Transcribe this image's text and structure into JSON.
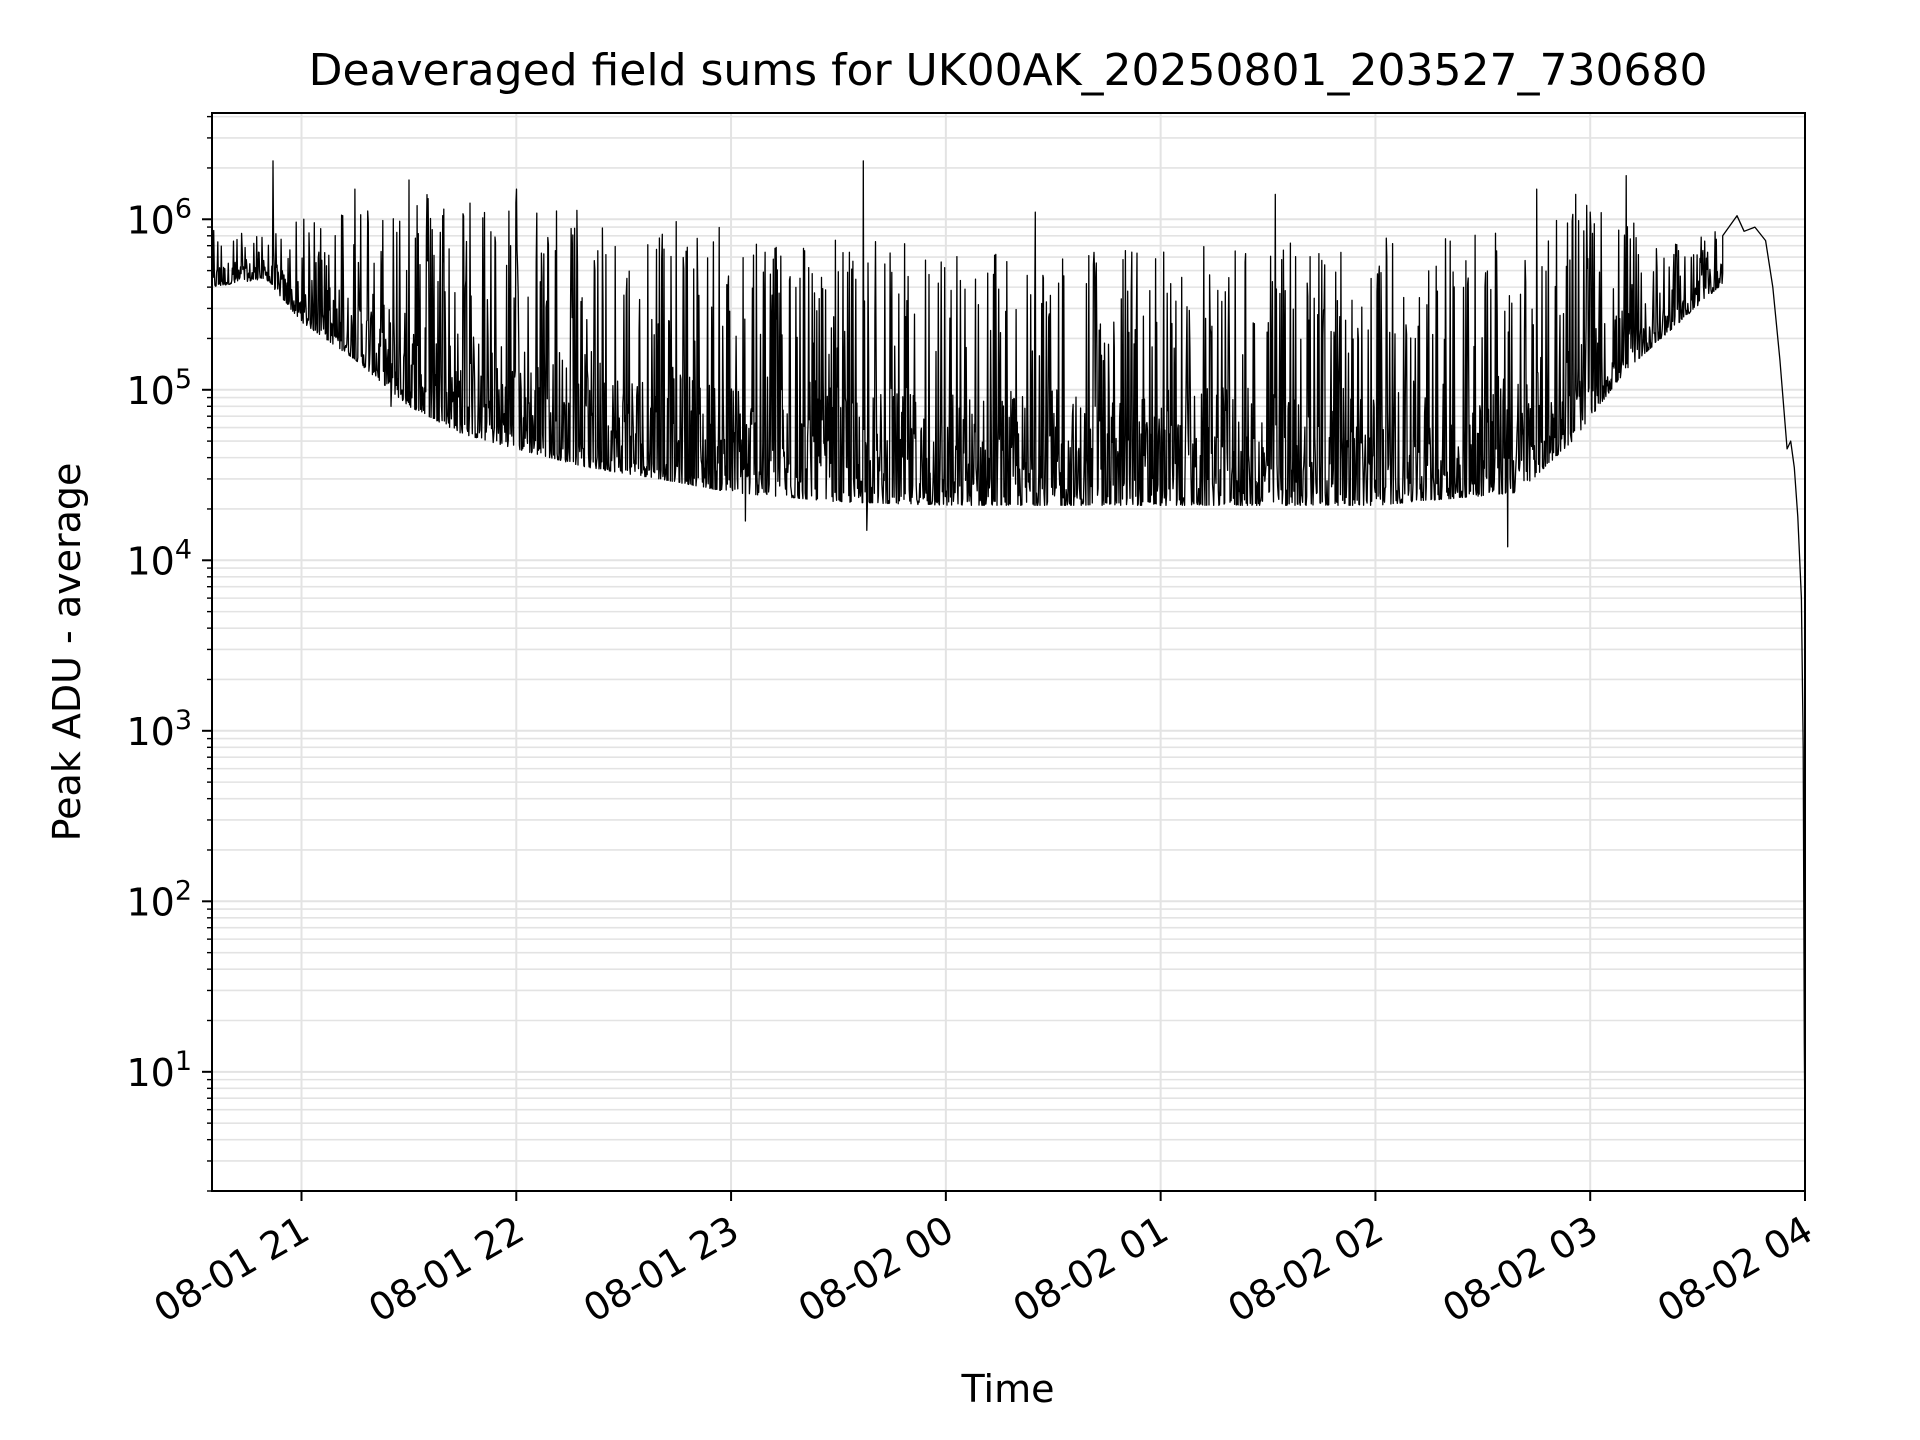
{
  "chart_data": {
    "type": "line",
    "title": "Deaveraged field sums for UK00AK_20250801_203527_730680",
    "xlabel": "Time",
    "ylabel": "Peak ADU - average",
    "y_scale": "log",
    "ylim": [
      2,
      4200000
    ],
    "xlim": [
      "2025-08-01 20:35",
      "2025-08-02 03:59"
    ],
    "grid": true,
    "x_ticks": [
      {
        "value": "2025-08-01 21:00",
        "label": "08-01 21"
      },
      {
        "value": "2025-08-01 22:00",
        "label": "08-01 22"
      },
      {
        "value": "2025-08-01 23:00",
        "label": "08-01 23"
      },
      {
        "value": "2025-08-02 00:00",
        "label": "08-02 00"
      },
      {
        "value": "2025-08-02 01:00",
        "label": "08-02 01"
      },
      {
        "value": "2025-08-02 02:00",
        "label": "08-02 02"
      },
      {
        "value": "2025-08-02 03:00",
        "label": "08-02 03"
      },
      {
        "value": "2025-08-02 04:00",
        "label": "08-02 04"
      }
    ],
    "y_ticks": [
      {
        "value": 10,
        "base": "10",
        "exp": "1"
      },
      {
        "value": 100,
        "base": "10",
        "exp": "2"
      },
      {
        "value": 1000,
        "base": "10",
        "exp": "3"
      },
      {
        "value": 10000,
        "base": "10",
        "exp": "4"
      },
      {
        "value": 100000,
        "base": "10",
        "exp": "5"
      },
      {
        "value": 1000000,
        "base": "10",
        "exp": "6"
      }
    ],
    "series": [
      {
        "line_color": "#000000",
        "envelope": [
          {
            "t": "2025-08-01 20:35",
            "low": 400000,
            "high": 900000
          },
          {
            "t": "2025-08-01 20:50",
            "low": 450000,
            "high": 800000
          },
          {
            "t": "2025-08-01 21:00",
            "low": 250000,
            "high": 1000000
          },
          {
            "t": "2025-08-01 21:15",
            "low": 150000,
            "high": 1300000
          },
          {
            "t": "2025-08-01 21:30",
            "low": 80000,
            "high": 1600000
          },
          {
            "t": "2025-08-01 21:45",
            "low": 55000,
            "high": 1500000
          },
          {
            "t": "2025-08-01 22:00",
            "low": 45000,
            "high": 1400000
          },
          {
            "t": "2025-08-01 22:20",
            "low": 35000,
            "high": 1200000
          },
          {
            "t": "2025-08-01 22:40",
            "low": 30000,
            "high": 1000000
          },
          {
            "t": "2025-08-01 23:00",
            "low": 25000,
            "high": 900000
          },
          {
            "t": "2025-08-01 23:30",
            "low": 22000,
            "high": 800000
          },
          {
            "t": "2025-08-02 00:00",
            "low": 21000,
            "high": 700000
          },
          {
            "t": "2025-08-02 01:00",
            "low": 21000,
            "high": 700000
          },
          {
            "t": "2025-08-02 02:00",
            "low": 21000,
            "high": 800000
          },
          {
            "t": "2025-08-02 02:40",
            "low": 25000,
            "high": 1000000
          },
          {
            "t": "2025-08-02 02:55",
            "low": 50000,
            "high": 1300000
          },
          {
            "t": "2025-08-02 03:10",
            "low": 130000,
            "high": 1000000
          },
          {
            "t": "2025-08-02 03:25",
            "low": 250000,
            "high": 700000
          },
          {
            "t": "2025-08-02 03:37",
            "low": 420000,
            "high": 900000
          }
        ],
        "spikes": [
          {
            "t": "2025-08-01 20:52",
            "value": 2200000
          },
          {
            "t": "2025-08-01 21:15",
            "value": 1500000
          },
          {
            "t": "2025-08-01 21:30",
            "value": 1700000
          },
          {
            "t": "2025-08-01 22:00",
            "value": 1500000
          },
          {
            "t": "2025-08-01 23:37",
            "value": 2200000
          },
          {
            "t": "2025-08-02 00:25",
            "value": 1100000
          },
          {
            "t": "2025-08-02 01:32",
            "value": 1400000
          },
          {
            "t": "2025-08-02 02:45",
            "value": 1500000
          },
          {
            "t": "2025-08-02 02:56",
            "value": 1400000
          },
          {
            "t": "2025-08-02 03:10",
            "value": 1800000
          }
        ],
        "dips": [
          {
            "t": "2025-08-01 21:25",
            "value": 80000
          },
          {
            "t": "2025-08-01 23:04",
            "value": 17000
          },
          {
            "t": "2025-08-01 23:38",
            "value": 15000
          },
          {
            "t": "2025-08-02 02:37",
            "value": 12000
          }
        ],
        "tail": [
          {
            "t": "2025-08-02 03:37",
            "value": 800000
          },
          {
            "t": "2025-08-02 03:41",
            "value": 1050000
          },
          {
            "t": "2025-08-02 03:43",
            "value": 850000
          },
          {
            "t": "2025-08-02 03:46",
            "value": 900000
          },
          {
            "t": "2025-08-02 03:49",
            "value": 750000
          },
          {
            "t": "2025-08-02 03:51",
            "value": 400000
          },
          {
            "t": "2025-08-02 03:53",
            "value": 150000
          },
          {
            "t": "2025-08-02 03:55",
            "value": 45000
          },
          {
            "t": "2025-08-02 03:56",
            "value": 50000
          },
          {
            "t": "2025-08-02 03:57",
            "value": 35000
          },
          {
            "t": "2025-08-02 03:58",
            "value": 18000
          },
          {
            "t": "2025-08-02 03:59",
            "value": 6000
          },
          {
            "t": "2025-08-02 03:59.5",
            "value": 800
          },
          {
            "t": "2025-08-02 03:59.8",
            "value": 15
          },
          {
            "t": "2025-08-02 04:00",
            "value": 4
          }
        ]
      }
    ]
  }
}
